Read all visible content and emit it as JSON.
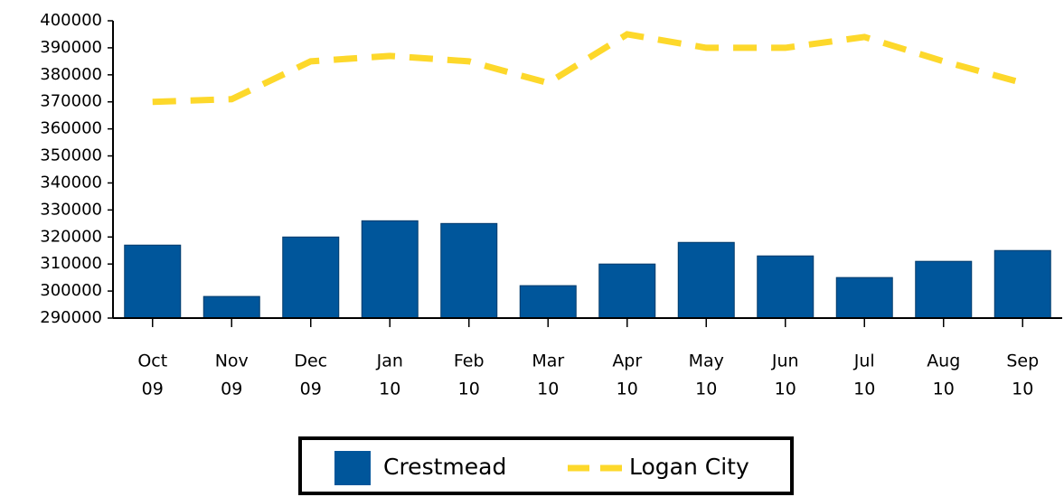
{
  "chart_data": {
    "type": "bar-line",
    "categories": [
      [
        "Oct",
        "09"
      ],
      [
        "Nov",
        "09"
      ],
      [
        "Dec",
        "09"
      ],
      [
        "Jan",
        "10"
      ],
      [
        "Feb",
        "10"
      ],
      [
        "Mar",
        "10"
      ],
      [
        "Apr",
        "10"
      ],
      [
        "May",
        "10"
      ],
      [
        "Jun",
        "10"
      ],
      [
        "Jul",
        "10"
      ],
      [
        "Aug",
        "10"
      ],
      [
        "Sep",
        "10"
      ]
    ],
    "series": [
      {
        "name": "Crestmead",
        "type": "bar",
        "color": "#00569b",
        "values": [
          317000,
          298000,
          320000,
          326000,
          325000,
          302000,
          310000,
          318000,
          313000,
          305000,
          311000,
          315000
        ]
      },
      {
        "name": "Logan City",
        "type": "line",
        "color": "#fdd82b",
        "values": [
          370000,
          371000,
          385000,
          387000,
          385000,
          377000,
          395000,
          390000,
          390000,
          394000,
          385000,
          377000
        ]
      }
    ],
    "ylim": [
      290000,
      400000
    ],
    "yticks": [
      290000,
      300000,
      310000,
      320000,
      330000,
      340000,
      350000,
      360000,
      370000,
      380000,
      390000,
      400000
    ],
    "grid": false,
    "legend": "bottom"
  }
}
